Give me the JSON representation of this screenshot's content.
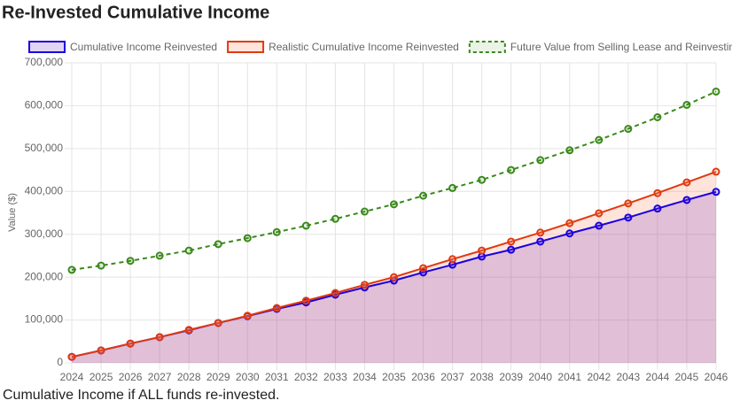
{
  "chart_data": {
    "type": "line",
    "title": "Re-Invested Cumulative Income",
    "y_label": "Value ($)",
    "caption": "Cumulative Income if ALL funds re-invested.",
    "categories": [
      "2024",
      "2025",
      "2026",
      "2027",
      "2028",
      "2029",
      "2030",
      "2031",
      "2032",
      "2033",
      "2034",
      "2035",
      "2036",
      "2037",
      "2038",
      "2039",
      "2040",
      "2041",
      "2042",
      "2043",
      "2044",
      "2045",
      "2046"
    ],
    "series": [
      {
        "name": "Cumulative Income Reinvested",
        "color": "#1a00e0",
        "fill_color": "rgba(120,60,200,0.22)",
        "fill": true,
        "dashed": false,
        "values": [
          14000,
          29000,
          45000,
          60000,
          76000,
          93000,
          109000,
          126000,
          141000,
          159000,
          176000,
          192000,
          211000,
          229000,
          248000,
          264000,
          283000,
          302000,
          320000,
          339000,
          360000,
          380000,
          399000
        ]
      },
      {
        "name": "Realistic Cumulative Income Reinvested",
        "color": "#e03a10",
        "fill_color": "rgba(255,120,80,0.2)",
        "fill": true,
        "dashed": false,
        "values": [
          14000,
          29000,
          45000,
          60000,
          77000,
          93000,
          110000,
          128000,
          145000,
          163000,
          182000,
          200000,
          221000,
          242000,
          262000,
          283000,
          304000,
          326000,
          349000,
          372000,
          396000,
          421000,
          446000
        ]
      },
      {
        "name": "Future Value from Selling Lease and Reinvesting",
        "color": "#3a8a1a",
        "fill_color": "rgba(58,138,26,0.1)",
        "fill": false,
        "dashed": true,
        "values": [
          217000,
          227000,
          238000,
          250000,
          262000,
          277000,
          291000,
          305000,
          320000,
          336000,
          353000,
          370000,
          390000,
          408000,
          427000,
          450000,
          473000,
          496000,
          520000,
          546000,
          573000,
          602000,
          633000
        ]
      }
    ],
    "ylim": [
      0,
      700000
    ],
    "yticks": [
      0,
      {
        "value": 100000,
        "label": "100,000"
      },
      {
        "value": 200000,
        "label": "200,000"
      },
      {
        "value": 300000,
        "label": "300,000"
      },
      {
        "value": 400000,
        "label": "400,000"
      },
      {
        "value": 500000,
        "label": "500,000"
      },
      {
        "value": 600000,
        "label": "600,000"
      },
      {
        "value": 700000,
        "label": "700,000"
      }
    ],
    "grid": true
  }
}
